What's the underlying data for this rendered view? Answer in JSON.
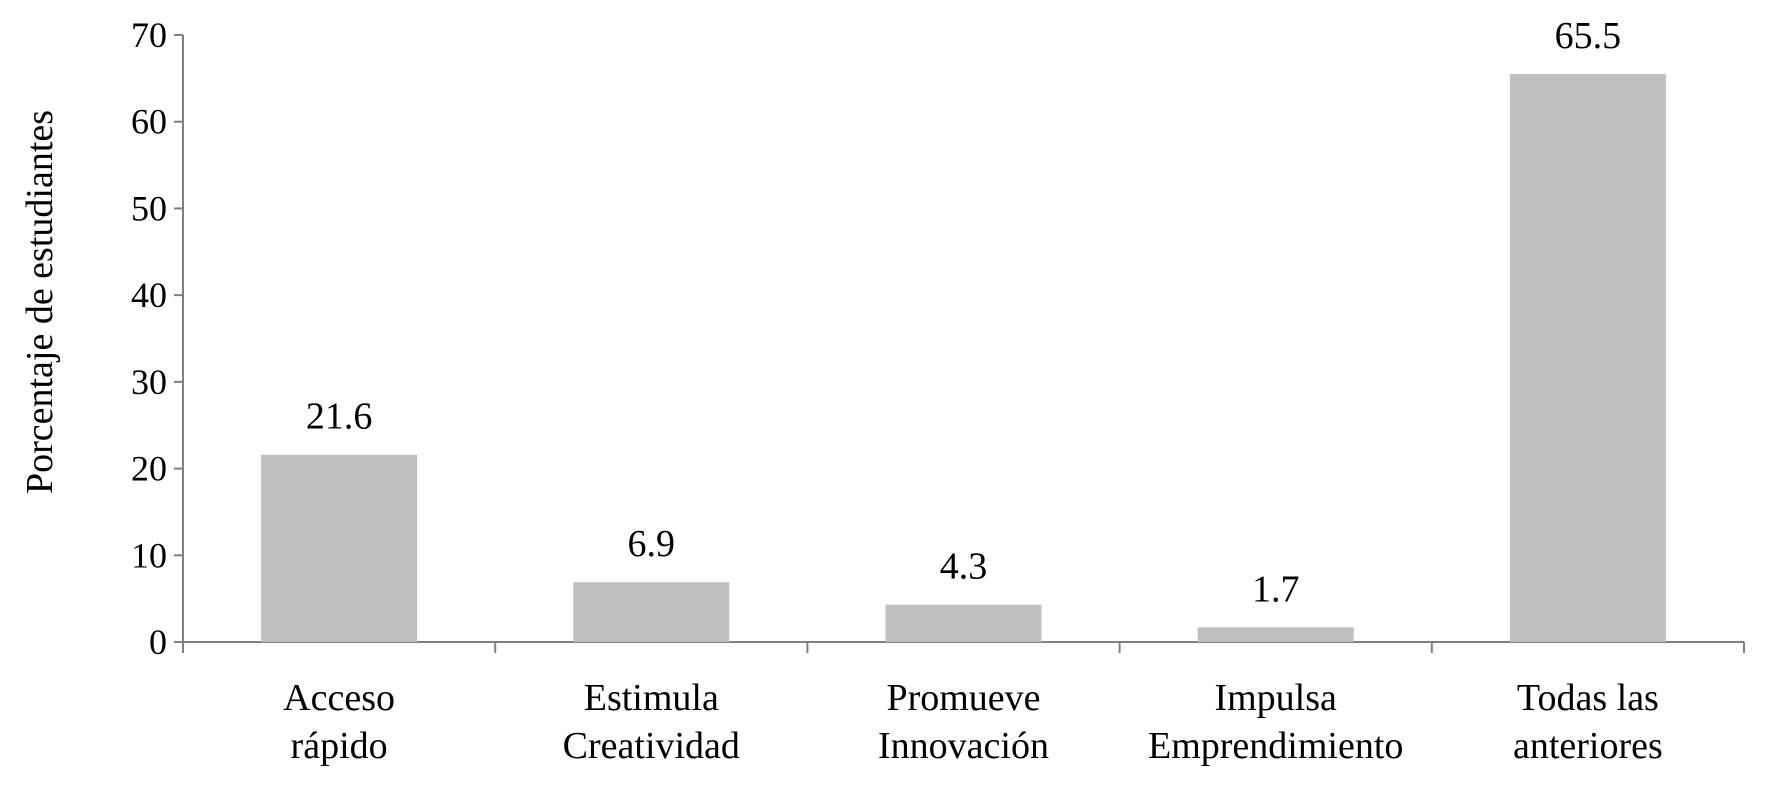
{
  "chart_data": {
    "type": "bar",
    "title": "",
    "xlabel": "",
    "ylabel": "Porcentaje de estudiantes",
    "ylim": [
      0,
      70
    ],
    "yticks": [
      "0",
      "10",
      "20",
      "30",
      "40",
      "50",
      "60",
      "70"
    ],
    "categories": [
      [
        "Acceso",
        "rápido"
      ],
      [
        "Estimula",
        "Creatividad"
      ],
      [
        "Promueve",
        "Innovación"
      ],
      [
        "Impulsa",
        "Emprendimiento"
      ],
      [
        "Todas las",
        "anteriores"
      ]
    ],
    "values": [
      21.6,
      6.9,
      4.3,
      1.7,
      65.5
    ],
    "value_labels": [
      "21.6",
      "6.9",
      "4.3",
      "1.7",
      "65.5"
    ],
    "grid": false,
    "legend": "none",
    "bar_color": "#bfbfbf",
    "axis_color": "#808080"
  }
}
